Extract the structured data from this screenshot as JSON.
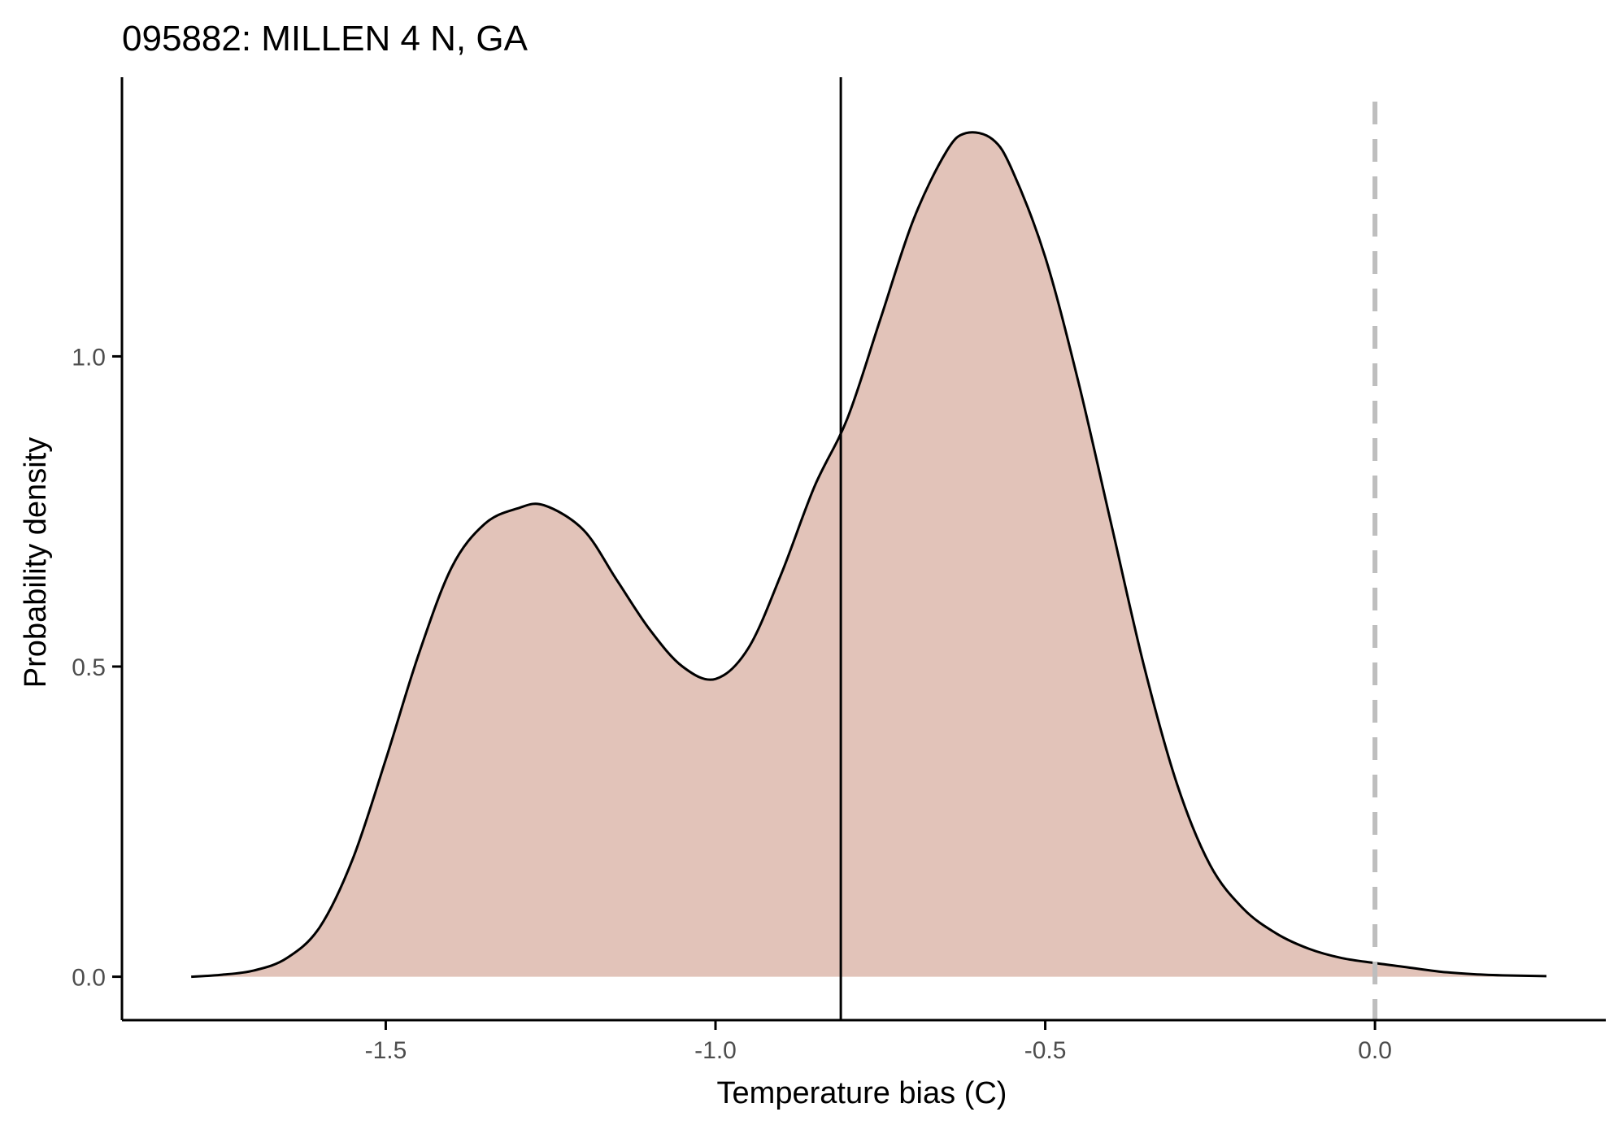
{
  "chart_data": {
    "type": "area",
    "title": "095882: MILLEN 4 N, GA",
    "xlabel": "Temperature bias (C)",
    "ylabel": "Probability density",
    "xlim": [
      -1.9,
      0.35
    ],
    "ylim": [
      -0.07,
      1.45
    ],
    "x_ticks": [
      -1.5,
      -1.0,
      -0.5,
      0.0
    ],
    "x_tick_labels": [
      "-1.5",
      "-1.0",
      "-0.5",
      "0.0"
    ],
    "y_ticks": [
      0.0,
      0.5,
      1.0
    ],
    "y_tick_labels": [
      "0.0",
      "0.5",
      "1.0"
    ],
    "grid": false,
    "series": [
      {
        "x": [
          -1.795,
          -1.75,
          -1.7,
          -1.65,
          -1.6,
          -1.55,
          -1.5,
          -1.45,
          -1.4,
          -1.35,
          -1.3,
          -1.26,
          -1.2,
          -1.15,
          -1.1,
          -1.05,
          -1.0,
          -0.95,
          -0.9,
          -0.85,
          -0.8,
          -0.75,
          -0.7,
          -0.65,
          -0.62,
          -0.58,
          -0.55,
          -0.5,
          -0.45,
          -0.4,
          -0.35,
          -0.3,
          -0.25,
          -0.2,
          -0.15,
          -0.1,
          -0.05,
          0.0,
          0.05,
          0.1,
          0.15,
          0.2,
          0.26
        ],
        "y": [
          0.0,
          0.003,
          0.01,
          0.03,
          0.08,
          0.19,
          0.35,
          0.52,
          0.66,
          0.73,
          0.755,
          0.76,
          0.72,
          0.64,
          0.56,
          0.5,
          0.48,
          0.53,
          0.65,
          0.79,
          0.9,
          1.06,
          1.22,
          1.33,
          1.36,
          1.35,
          1.3,
          1.16,
          0.96,
          0.73,
          0.5,
          0.31,
          0.18,
          0.11,
          0.07,
          0.045,
          0.03,
          0.022,
          0.015,
          0.008,
          0.004,
          0.002,
          0.001
        ]
      }
    ],
    "reference_lines": [
      {
        "axis": "x",
        "value": -0.81,
        "style": "solid"
      },
      {
        "axis": "x",
        "value": 0.0,
        "style": "dashed"
      }
    ],
    "colors": {
      "fill": "#e2c3b9",
      "curve": "#000000",
      "axis": "#000000",
      "tick_label": "#4d4d4d",
      "zero_line": "#bebebe"
    }
  }
}
